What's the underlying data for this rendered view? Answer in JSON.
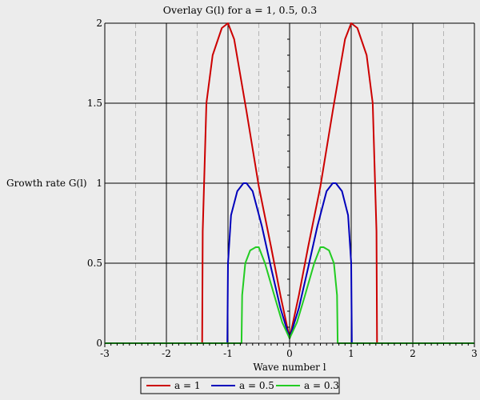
{
  "chart_data": {
    "type": "line",
    "title": "Overlay G(l) for a = 1, 0.5, 0.3",
    "xlabel": "Wave number l",
    "ylabel": "Growth rate G(l)",
    "xlim": [
      -3,
      3
    ],
    "ylim": [
      0,
      2
    ],
    "x_ticks": [
      "-3",
      "-2",
      "-1",
      "0",
      "1",
      "2",
      "3"
    ],
    "y_ticks": [
      "0",
      "0.5",
      "1",
      "1.5",
      "2"
    ],
    "grid": true,
    "legend_position": "bottom",
    "series": [
      {
        "name": "a = 1",
        "color": "#cc0000",
        "x": [
          -3,
          -1.42,
          -1.41,
          -1.35,
          -1.25,
          -1.1,
          -1.0,
          -0.9,
          -0.7,
          -0.5,
          -0.3,
          -0.15,
          0,
          0.15,
          0.3,
          0.5,
          0.7,
          0.9,
          1.0,
          1.1,
          1.25,
          1.35,
          1.41,
          1.42,
          3
        ],
        "y": [
          0,
          0,
          0.7,
          1.5,
          1.8,
          1.97,
          2.0,
          1.9,
          1.45,
          0.98,
          0.6,
          0.3,
          0.03,
          0.3,
          0.6,
          0.98,
          1.45,
          1.9,
          2.0,
          1.97,
          1.8,
          1.5,
          0.7,
          0,
          0
        ]
      },
      {
        "name": "a = 0.5",
        "color": "#0000bb",
        "x": [
          -3,
          -1.01,
          -1.0,
          -0.95,
          -0.85,
          -0.75,
          -0.7,
          -0.6,
          -0.45,
          -0.3,
          -0.15,
          0,
          0.15,
          0.3,
          0.45,
          0.6,
          0.7,
          0.75,
          0.85,
          0.95,
          1.0,
          1.01,
          3
        ],
        "y": [
          0,
          0,
          0.5,
          0.8,
          0.95,
          1.0,
          1.0,
          0.95,
          0.73,
          0.47,
          0.22,
          0.03,
          0.22,
          0.47,
          0.73,
          0.95,
          1.0,
          1.0,
          0.95,
          0.8,
          0.5,
          0,
          0
        ]
      },
      {
        "name": "a = 0.3",
        "color": "#22cc22",
        "x": [
          -3,
          -0.78,
          -0.77,
          -0.72,
          -0.64,
          -0.55,
          -0.5,
          -0.4,
          -0.25,
          -0.12,
          0,
          0.12,
          0.25,
          0.4,
          0.5,
          0.55,
          0.64,
          0.72,
          0.77,
          0.78,
          3
        ],
        "y": [
          0,
          0,
          0.3,
          0.5,
          0.58,
          0.6,
          0.6,
          0.5,
          0.3,
          0.13,
          0.03,
          0.13,
          0.3,
          0.5,
          0.6,
          0.6,
          0.58,
          0.5,
          0.3,
          0,
          0
        ]
      }
    ]
  }
}
